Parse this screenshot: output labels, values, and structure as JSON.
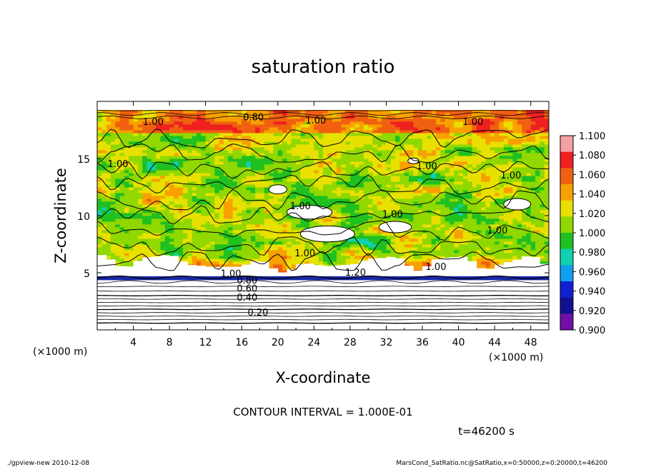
{
  "chart_data": {
    "type": "heatmap",
    "title": "saturation ratio",
    "xlabel": "X-coordinate",
    "ylabel": "Z-coordinate",
    "x_unit": "(×1000 m)",
    "y_unit": "(×1000 m)",
    "xlim": [
      0,
      50
    ],
    "ylim": [
      0,
      20
    ],
    "x_ticks": [
      4,
      8,
      12,
      16,
      20,
      24,
      28,
      32,
      36,
      40,
      44,
      48
    ],
    "x_tick_labels": [
      "4",
      "8",
      "12",
      "16",
      "20",
      "24",
      "28",
      "32",
      "36",
      "40",
      "44",
      "48"
    ],
    "y_ticks": [
      5,
      10,
      15
    ],
    "y_tick_labels": [
      "5",
      "10",
      "15"
    ],
    "colorbar": {
      "min": 0.9,
      "max": 1.1,
      "ticks": [
        "1.100",
        "1.080",
        "1.060",
        "1.040",
        "1.020",
        "1.000",
        "0.980",
        "0.960",
        "0.940",
        "0.920",
        "0.900"
      ],
      "colors": [
        "#f4a0a6",
        "#ee2020",
        "#f06010",
        "#f8a000",
        "#e8e000",
        "#90d800",
        "#20c020",
        "#10d0b0",
        "#10a0f0",
        "#1020d0",
        "#101090",
        "#7010a8"
      ]
    },
    "contour_lines_z": [
      0.6,
      0.9,
      1.2,
      1.5,
      1.8,
      2.1,
      2.4,
      2.7,
      3.0,
      3.4,
      3.8,
      4.2,
      4.6,
      18.6,
      18.9,
      19.2
    ],
    "contour_labels": [
      {
        "text": "0.20",
        "x": 17.8,
        "z": 1.5
      },
      {
        "text": "0.40",
        "x": 16.6,
        "z": 2.8
      },
      {
        "text": "0.60",
        "x": 16.6,
        "z": 3.6
      },
      {
        "text": "0.80",
        "x": 16.6,
        "z": 4.3
      },
      {
        "text": "1.00",
        "x": 14.8,
        "z": 4.9
      },
      {
        "text": "1.20",
        "x": 28.6,
        "z": 5.0
      },
      {
        "text": "1.00",
        "x": 23.0,
        "z": 6.7
      },
      {
        "text": "1.00",
        "x": 22.5,
        "z": 10.8
      },
      {
        "text": "1.00",
        "x": 32.7,
        "z": 10.1
      },
      {
        "text": "1.00",
        "x": 36.5,
        "z": 14.3
      },
      {
        "text": "1.00",
        "x": 2.3,
        "z": 14.5
      },
      {
        "text": "1.00",
        "x": 44.3,
        "z": 8.7
      },
      {
        "text": "1.00",
        "x": 45.8,
        "z": 13.5
      },
      {
        "text": "1.00",
        "x": 37.5,
        "z": 5.5
      },
      {
        "text": "1.00",
        "x": 6.2,
        "z": 18.2
      },
      {
        "text": "1.00",
        "x": 24.2,
        "z": 18.3
      },
      {
        "text": "1.00",
        "x": 41.6,
        "z": 18.2
      },
      {
        "text": "0.80",
        "x": 17.3,
        "z": 18.6
      }
    ],
    "field_regions": [
      {
        "level": 0,
        "x": 23.5,
        "z": 10.3,
        "rx": 2.5,
        "rz": 0.6,
        "color": "#ffffff"
      },
      {
        "level": 0,
        "x": 25.5,
        "z": 8.4,
        "rx": 3.0,
        "rz": 0.7,
        "color": "#ffffff"
      },
      {
        "level": 0,
        "x": 33.0,
        "z": 9.0,
        "rx": 1.8,
        "rz": 0.5,
        "color": "#ffffff"
      },
      {
        "level": 0,
        "x": 46.5,
        "z": 11.0,
        "rx": 1.5,
        "rz": 0.5,
        "color": "#ffffff"
      },
      {
        "level": 0,
        "x": 20.0,
        "z": 12.3,
        "rx": 1.0,
        "rz": 0.4,
        "color": "#ffffff"
      },
      {
        "level": 0,
        "x": 35.0,
        "z": 14.8,
        "rx": 0.6,
        "rz": 0.25,
        "color": "#ffffff"
      }
    ],
    "contour_interval": "CONTOUR INTERVAL = 1.000E-01",
    "time": "t=46200 s"
  },
  "footer": {
    "left": "./gpview-new  2010-12-08",
    "right": "MarsCond_SatRatio.nc@SatRatio,x=0:50000,z=0:20000,t=46200"
  }
}
